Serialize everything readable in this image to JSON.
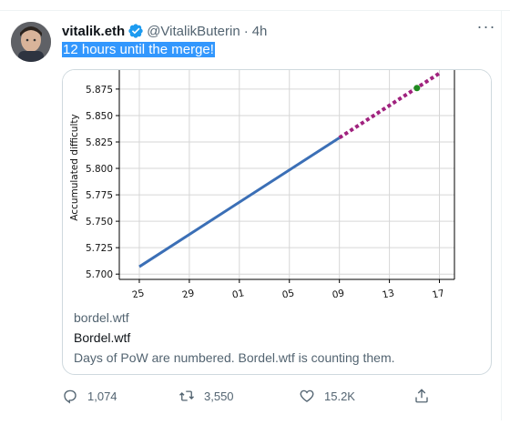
{
  "tweet": {
    "author_name": "vitalik.eth",
    "author_handle": "@VitalikButerin",
    "separator": "·",
    "time": "4h",
    "more_label": "···",
    "text": "12 hours until the merge!"
  },
  "card": {
    "domain": "bordel.wtf",
    "title": "Bordel.wtf",
    "description": "Days of PoW are numbered. Bordel.wtf is counting them."
  },
  "actions": {
    "replies": "1,074",
    "retweets": "3,550",
    "likes": "15.2K"
  },
  "colors": {
    "accent": "#1d9bf0",
    "selection": "#3297fd",
    "series_actual": "#3b6fb6",
    "series_projection": "#a0227e",
    "marker": "#1f8a1f"
  },
  "chart_data": {
    "type": "line",
    "ylabel": "Accumulated difficulty",
    "xlabel": "",
    "ylim": [
      5.695,
      5.893
    ],
    "yticks": [
      "5.700",
      "5.725",
      "5.750",
      "5.775",
      "5.800",
      "5.825",
      "5.850",
      "5.875"
    ],
    "xticks": [
      "25",
      "29",
      "01",
      "05",
      "09",
      "13",
      "17"
    ],
    "xtick_values": [
      0,
      4,
      8,
      12,
      16,
      20,
      24
    ],
    "xlim": [
      -1.6,
      25.2
    ],
    "grid": true,
    "series": [
      {
        "style": "solid",
        "x": [
          0,
          16
        ],
        "y": [
          5.707,
          5.829
        ]
      },
      {
        "style": "dotted",
        "x": [
          16,
          24
        ],
        "y": [
          5.829,
          5.89
        ]
      }
    ],
    "marker_point": {
      "x": 22.2,
      "y": 5.876
    }
  }
}
